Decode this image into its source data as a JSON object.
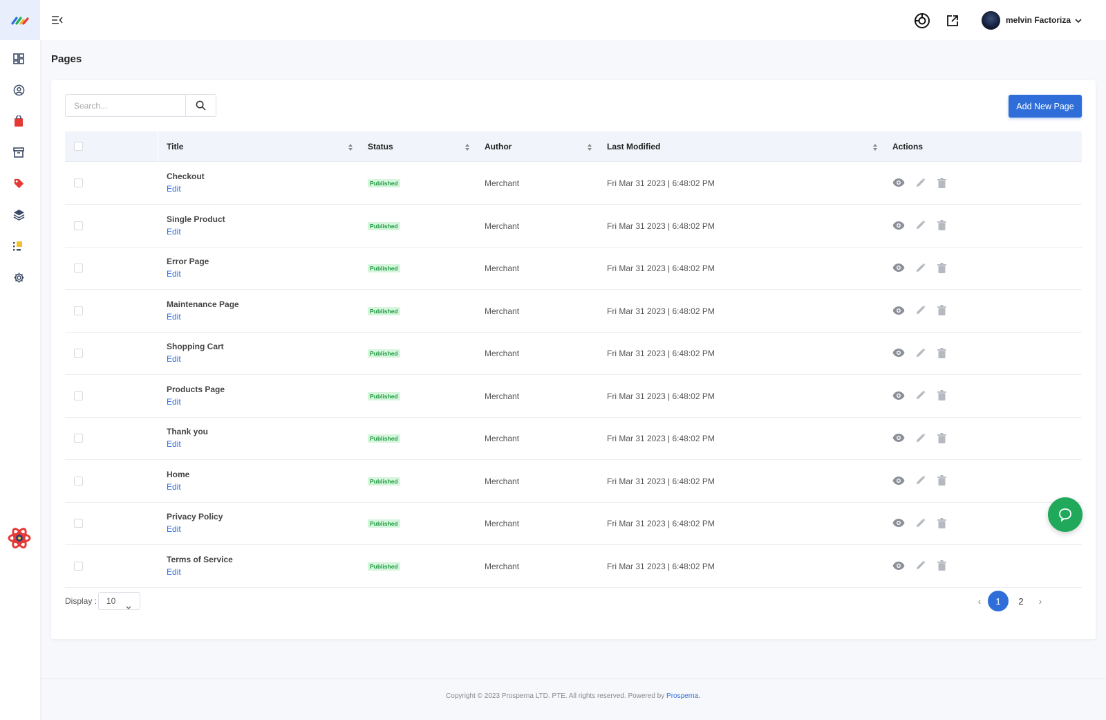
{
  "header": {
    "user_name": "melvin Factoriza"
  },
  "sidebar": {
    "items": [
      {
        "name": "dashboard-icon"
      },
      {
        "name": "user-circle-icon"
      },
      {
        "name": "shopping-bag-icon"
      },
      {
        "name": "archive-icon"
      },
      {
        "name": "tag-icon"
      },
      {
        "name": "layers-icon"
      },
      {
        "name": "list-icon"
      },
      {
        "name": "gear-icon"
      }
    ]
  },
  "page": {
    "title": "Pages"
  },
  "toolbar": {
    "search_placeholder": "Search...",
    "add_label": "Add New Page"
  },
  "table": {
    "columns": {
      "title": "Title",
      "status": "Status",
      "author": "Author",
      "last_modified": "Last Modified",
      "actions": "Actions"
    },
    "rows": [
      {
        "title": "Checkout",
        "edit": "Edit",
        "status": "Published",
        "author": "Merchant",
        "modified": "Fri Mar 31 2023 | 6:48:02 PM"
      },
      {
        "title": "Single Product",
        "edit": "Edit",
        "status": "Published",
        "author": "Merchant",
        "modified": "Fri Mar 31 2023 | 6:48:02 PM"
      },
      {
        "title": "Error Page",
        "edit": "Edit",
        "status": "Published",
        "author": "Merchant",
        "modified": "Fri Mar 31 2023 | 6:48:02 PM"
      },
      {
        "title": "Maintenance Page",
        "edit": "Edit",
        "status": "Published",
        "author": "Merchant",
        "modified": "Fri Mar 31 2023 | 6:48:02 PM"
      },
      {
        "title": "Shopping Cart",
        "edit": "Edit",
        "status": "Published",
        "author": "Merchant",
        "modified": "Fri Mar 31 2023 | 6:48:02 PM"
      },
      {
        "title": "Products Page",
        "edit": "Edit",
        "status": "Published",
        "author": "Merchant",
        "modified": "Fri Mar 31 2023 | 6:48:02 PM"
      },
      {
        "title": "Thank you",
        "edit": "Edit",
        "status": "Published",
        "author": "Merchant",
        "modified": "Fri Mar 31 2023 | 6:48:02 PM"
      },
      {
        "title": "Home",
        "edit": "Edit",
        "status": "Published",
        "author": "Merchant",
        "modified": "Fri Mar 31 2023 | 6:48:02 PM"
      },
      {
        "title": "Privacy Policy",
        "edit": "Edit",
        "status": "Published",
        "author": "Merchant",
        "modified": "Fri Mar 31 2023 | 6:48:02 PM"
      },
      {
        "title": "Terms of Service",
        "edit": "Edit",
        "status": "Published",
        "author": "Merchant",
        "modified": "Fri Mar 31 2023 | 6:48:02 PM"
      }
    ]
  },
  "pagination": {
    "display_label": "Display :",
    "display_value": "10",
    "pages": [
      "1",
      "2"
    ],
    "current": "1",
    "prev": "‹",
    "next": "›"
  },
  "footer": {
    "copyright": "Copyright © 2023 Prosperna LTD. PTE. All rights reserved. Powered by ",
    "brand_link": "Prosperna."
  },
  "colors": {
    "accent": "#2f6ed8",
    "published_bg": "#d5f5dc",
    "published_text": "#1d9b3f",
    "chat": "#20a95a"
  }
}
